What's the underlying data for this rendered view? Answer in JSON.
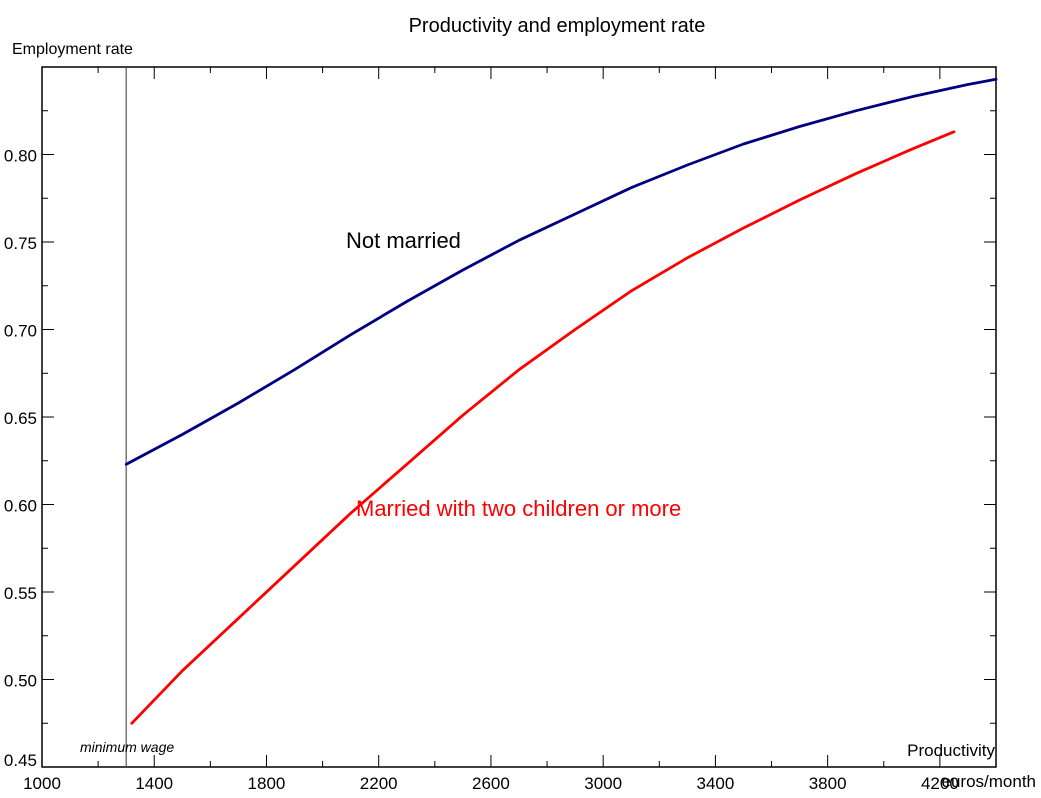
{
  "chart_data": {
    "type": "line",
    "title": "Productivity and employment rate",
    "ylabel": "Employment rate",
    "xlabel_line1": "Productivity",
    "xlabel_line2": "euros/month",
    "xlim": [
      1000,
      4400
    ],
    "ylim": [
      0.45,
      0.85
    ],
    "x_ticks": [
      1000,
      1400,
      1800,
      2200,
      2600,
      3000,
      3400,
      3800,
      4200
    ],
    "x_tick_labels": [
      "1000",
      "1400",
      "1800",
      "2200",
      "2600",
      "3000",
      "3400",
      "3800",
      "4200"
    ],
    "y_ticks": [
      0.45,
      0.5,
      0.55,
      0.6,
      0.65,
      0.7,
      0.75,
      0.8
    ],
    "y_tick_labels": [
      "0.45",
      "0.50",
      "0.55",
      "0.60",
      "0.65",
      "0.70",
      "0.75",
      "0.80"
    ],
    "grid": false,
    "reference_line": {
      "x": 1300,
      "label": "minimum wage"
    },
    "series": [
      {
        "name": "Not married",
        "color": "#000080",
        "x": [
          1300,
          1500,
          1700,
          1900,
          2100,
          2300,
          2500,
          2700,
          2900,
          3100,
          3300,
          3500,
          3700,
          3900,
          4100,
          4300,
          4400
        ],
        "y": [
          0.623,
          0.64,
          0.658,
          0.677,
          0.697,
          0.716,
          0.734,
          0.751,
          0.766,
          0.781,
          0.794,
          0.806,
          0.816,
          0.825,
          0.833,
          0.84,
          0.843
        ]
      },
      {
        "name": "Married with two children or more",
        "color": "#ff0000",
        "x": [
          1320,
          1500,
          1700,
          1900,
          2100,
          2300,
          2500,
          2700,
          2900,
          3100,
          3300,
          3500,
          3700,
          3900,
          4100,
          4250
        ],
        "y": [
          0.475,
          0.505,
          0.535,
          0.565,
          0.595,
          0.623,
          0.651,
          0.677,
          0.7,
          0.722,
          0.741,
          0.758,
          0.774,
          0.789,
          0.803,
          0.813
        ]
      }
    ]
  }
}
